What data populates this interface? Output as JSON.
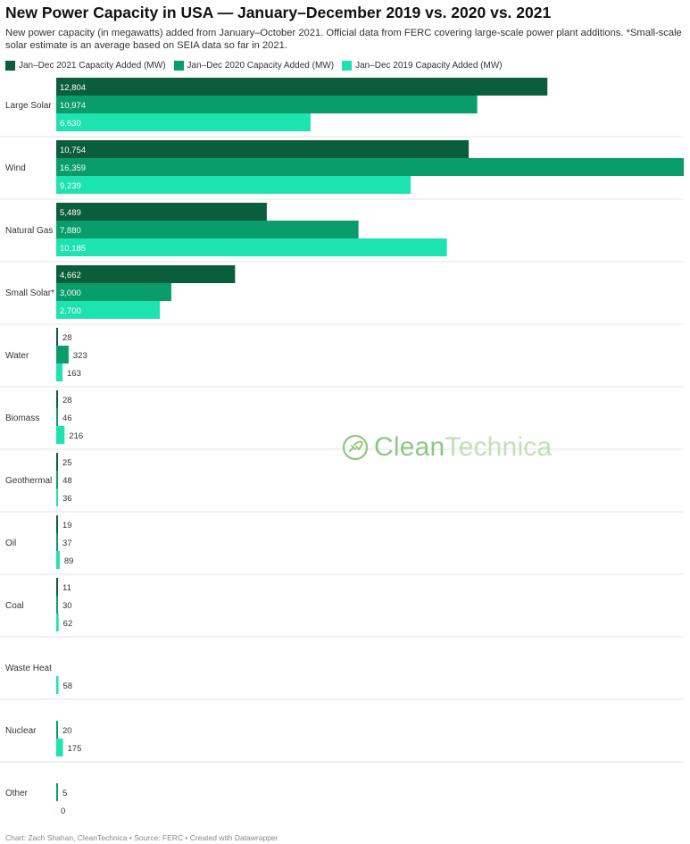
{
  "title": "New Power Capacity in USA — January–December 2019 vs. 2020 vs. 2021",
  "subtitle": "New power capacity (in megawatts) added from January–October 2021. Official data from FERC covering large-scale power plant additions. *Small-scale solar estimate is an average based on SEIA data so far in 2021.",
  "watermark": {
    "brand_part1": "Clean",
    "brand_part2": "Technica",
    "icon": "plug-leaf-icon"
  },
  "footer": "Chart: Zach Shahan, CleanTechnica • Source: FERC • Created with Datawrapper",
  "colors": {
    "y2021": "#0b5e3b",
    "y2020": "#099d6b",
    "y2019": "#1de3b0",
    "separator": "#e5e5e5",
    "watermark": "#7bc06a"
  },
  "chart_data": {
    "type": "bar",
    "orientation": "horizontal",
    "title": "New Power Capacity in USA — January–December 2019 vs. 2020 vs. 2021",
    "categories": [
      "Large Solar",
      "Wind",
      "Natural Gas",
      "Small Solar*",
      "Water",
      "Biomass",
      "Geothermal",
      "Oil",
      "Coal",
      "Waste Heat",
      "Nuclear",
      "Other"
    ],
    "series": [
      {
        "name": "Jan–Dec 2021 Capacity Added (MW)",
        "color": "#0b5e3b",
        "values": [
          12804,
          10754,
          5489,
          4662,
          28,
          28,
          25,
          19,
          11,
          null,
          null,
          null
        ]
      },
      {
        "name": "Jan–Dec 2020 Capacity Added (MW)",
        "color": "#099d6b",
        "values": [
          10974,
          16359,
          7880,
          3000,
          323,
          46,
          48,
          37,
          30,
          null,
          20,
          5
        ]
      },
      {
        "name": "Jan–Dec 2019 Capacity Added (MW)",
        "color": "#1de3b0",
        "values": [
          6630,
          9239,
          10185,
          2700,
          163,
          216,
          36,
          89,
          62,
          58,
          175,
          0
        ]
      }
    ],
    "xlim": [
      0,
      16359
    ],
    "legend_position": "top-left",
    "grid": false
  }
}
